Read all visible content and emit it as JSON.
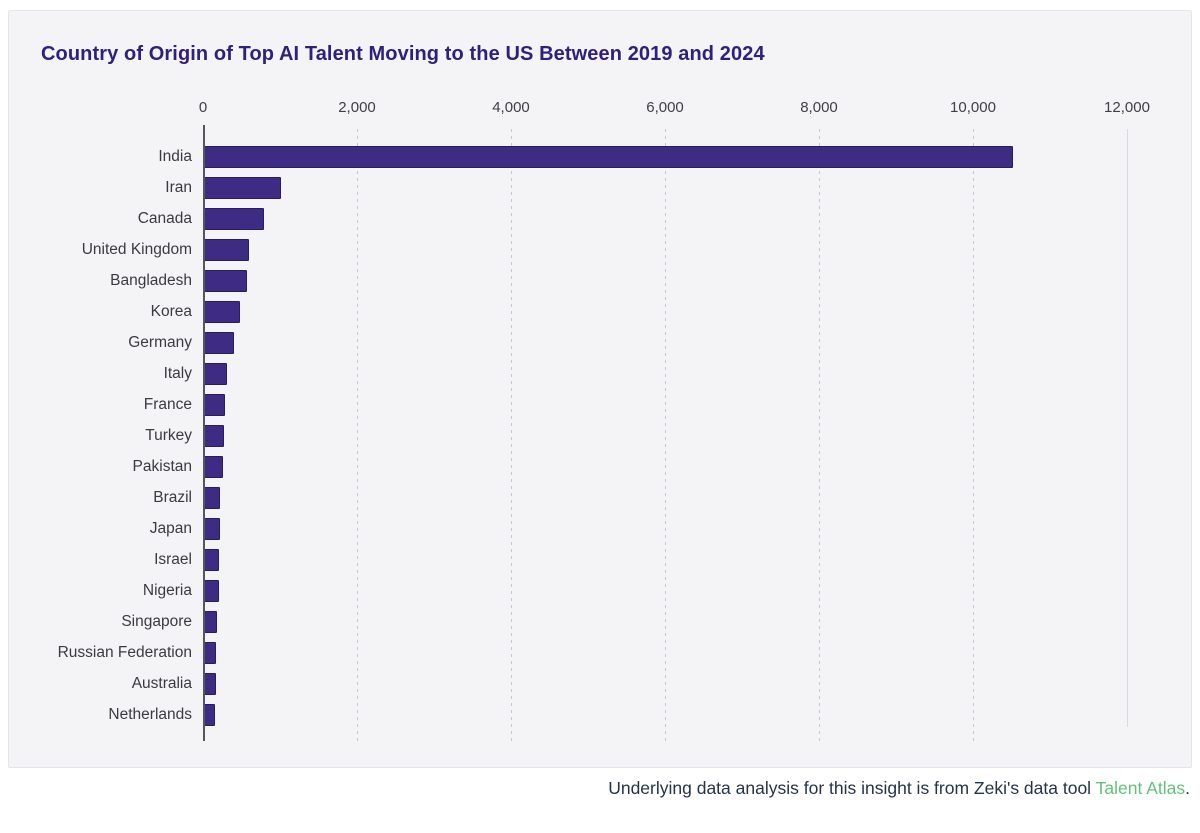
{
  "chart_data": {
    "type": "bar",
    "orientation": "horizontal",
    "title": "Country of Origin of Top AI Talent Moving to the US Between 2019 and 2024",
    "categories": [
      "India",
      "Iran",
      "Canada",
      "United Kingdom",
      "Bangladesh",
      "Korea",
      "Germany",
      "Italy",
      "France",
      "Turkey",
      "Pakistan",
      "Brazil",
      "Japan",
      "Israel",
      "Nigeria",
      "Singapore",
      "Russian Federation",
      "Australia",
      "Netherlands"
    ],
    "values": [
      10500,
      1000,
      780,
      580,
      555,
      470,
      390,
      295,
      275,
      262,
      250,
      212,
      210,
      200,
      195,
      165,
      162,
      158,
      140
    ],
    "xlabel": "",
    "ylabel": "",
    "xlim": [
      0,
      12000
    ],
    "tick_values": [
      0,
      2000,
      4000,
      6000,
      8000,
      10000,
      12000
    ],
    "tick_labels": [
      "0",
      "2,000",
      "4,000",
      "6,000",
      "8,000",
      "10,000",
      "12,000"
    ],
    "axis_position": "top",
    "grid": "vertical-dashed",
    "legend": "none",
    "bar_color": "#3d2b84",
    "background_color": "#f4f4f7",
    "title_color": "#2f217b"
  },
  "footer": {
    "text": "Underlying data analysis for this insight is from Zeki's data tool ",
    "link_text": "Talent Atlas",
    "suffix": ".",
    "link_color": "#62c17b"
  }
}
